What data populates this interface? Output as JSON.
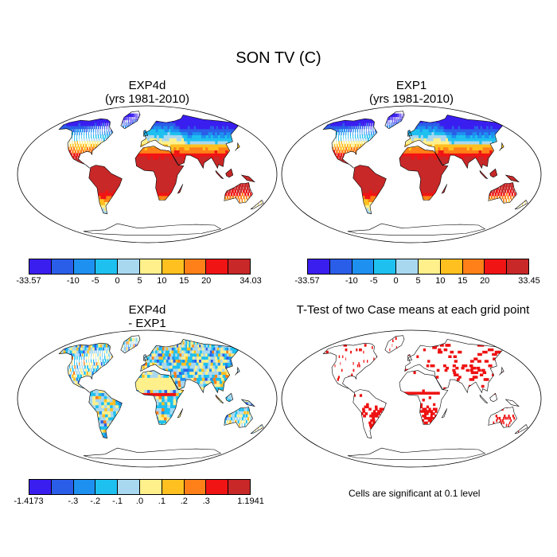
{
  "main_title": "SON TV (C)",
  "panels": [
    {
      "title_line1": "EXP4d",
      "title_line2": "(yrs 1981-2010)"
    },
    {
      "title_line1": "EXP1",
      "title_line2": "(yrs 1981-2010)"
    },
    {
      "title_line1": "EXP4d",
      "title_line2": "- EXP1"
    },
    {
      "title_line1": "T-Test of two Case means at each grid point",
      "title_line2": ""
    }
  ],
  "colorbars": [
    {
      "colors": [
        "#3a1ef0",
        "#2b5ee8",
        "#1e90f0",
        "#1ec0f0",
        "#a8d8f0",
        "#fff08c",
        "#ffc020",
        "#ff8018",
        "#f01414",
        "#c82828"
      ],
      "labels": [
        {
          "text": "-33.57",
          "pos": 0.0
        },
        {
          "text": "-10",
          "pos": 0.2
        },
        {
          "text": "-5",
          "pos": 0.3
        },
        {
          "text": "0",
          "pos": 0.4
        },
        {
          "text": "5",
          "pos": 0.5
        },
        {
          "text": "10",
          "pos": 0.6
        },
        {
          "text": "15",
          "pos": 0.7
        },
        {
          "text": "20",
          "pos": 0.8
        },
        {
          "text": "34.03",
          "pos": 1.0
        }
      ]
    },
    {
      "colors": [
        "#3a1ef0",
        "#2b5ee8",
        "#1e90f0",
        "#1ec0f0",
        "#a8d8f0",
        "#fff08c",
        "#ffc020",
        "#ff8018",
        "#f01414",
        "#c82828"
      ],
      "labels": [
        {
          "text": "-33.57",
          "pos": 0.0
        },
        {
          "text": "-10",
          "pos": 0.2
        },
        {
          "text": "-5",
          "pos": 0.3
        },
        {
          "text": "0",
          "pos": 0.4
        },
        {
          "text": "5",
          "pos": 0.5
        },
        {
          "text": "10",
          "pos": 0.6
        },
        {
          "text": "15",
          "pos": 0.7
        },
        {
          "text": "20",
          "pos": 0.8
        },
        {
          "text": "33.45",
          "pos": 1.0
        }
      ]
    },
    {
      "colors": [
        "#3a1ef0",
        "#2b5ee8",
        "#1e90f0",
        "#1ec0f0",
        "#a8d8f0",
        "#fff08c",
        "#ffc020",
        "#ff8018",
        "#f01414",
        "#c82828"
      ],
      "labels": [
        {
          "text": "-1.4173",
          "pos": 0.0
        },
        {
          "text": "-.3",
          "pos": 0.2
        },
        {
          "text": "-.2",
          "pos": 0.3
        },
        {
          "text": "-.1",
          "pos": 0.4
        },
        {
          "text": ".0",
          "pos": 0.5
        },
        {
          "text": ".1",
          "pos": 0.6
        },
        {
          "text": ".2",
          "pos": 0.7
        },
        {
          "text": ".3",
          "pos": 0.8
        },
        {
          "text": "1.1941",
          "pos": 1.0
        }
      ]
    }
  ],
  "significance_note": "Cells are significant at 0.1 level",
  "colors": {
    "significant": "#ee1111",
    "land_outline": "#000000",
    "map_border": "#000000"
  }
}
